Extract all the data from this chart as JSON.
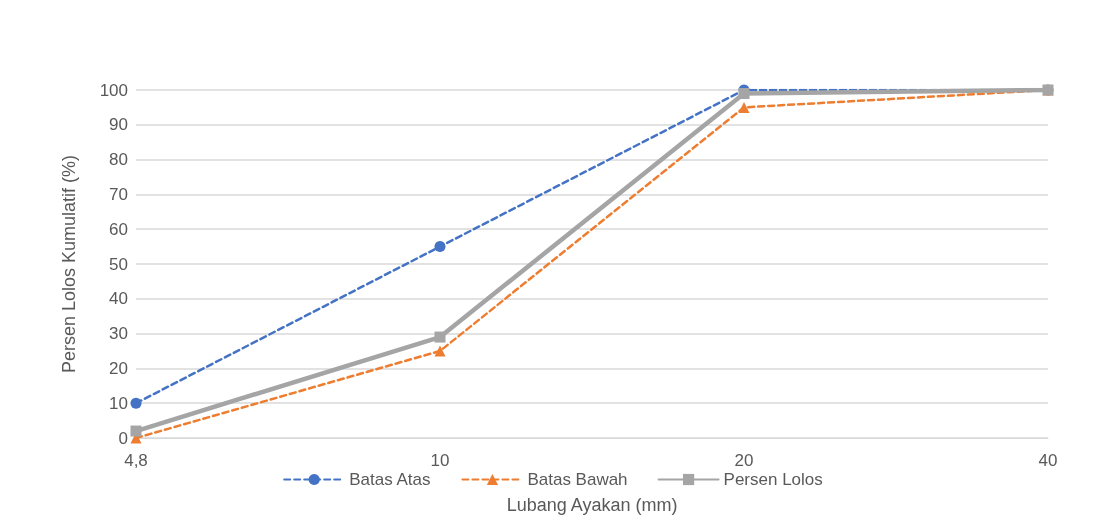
{
  "chart_data": {
    "type": "line",
    "xlabel": "Lubang Ayakan (mm)",
    "ylabel": "Persen Lolos Kumulatif (%)",
    "categories": [
      "4,8",
      "10",
      "20",
      "40"
    ],
    "series": [
      {
        "name": "Batas Atas",
        "color": "#4472c4",
        "values": [
          10,
          55,
          100,
          100
        ],
        "marker": "circle",
        "line_style": "dashed"
      },
      {
        "name": "Batas Bawah",
        "color": "#ed7d31",
        "values": [
          0,
          25,
          95,
          100
        ],
        "marker": "triangle",
        "line_style": "dashed"
      },
      {
        "name": "Persen Lolos",
        "color": "#a5a5a5",
        "values": [
          2,
          29,
          99,
          100
        ],
        "marker": "square",
        "line_style": "solid"
      }
    ],
    "ylim": [
      0,
      100
    ],
    "yticks": [
      0,
      10,
      20,
      30,
      40,
      50,
      60,
      70,
      80,
      90,
      100
    ],
    "grid": "y",
    "legend": "bottom"
  }
}
